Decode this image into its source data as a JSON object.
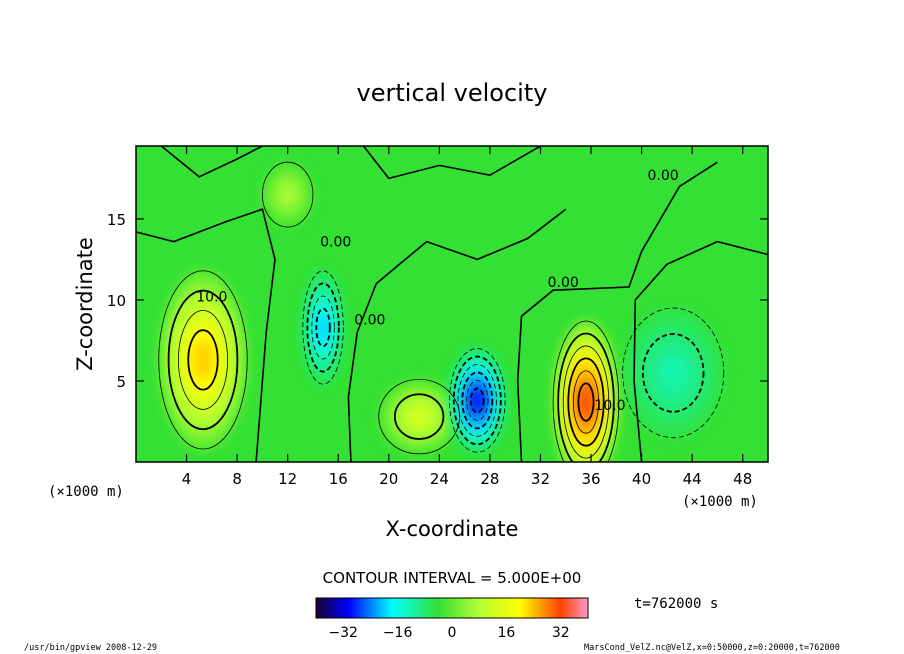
{
  "chart_data": {
    "type": "heatmap",
    "title": "vertical velocity",
    "xlabel": "X-coordinate",
    "ylabel": "Z-coordinate",
    "x_unit_left": "(×1000 m)",
    "x_unit_right": "(×1000 m)",
    "xlim": [
      0,
      50
    ],
    "ylim": [
      0,
      19.5
    ],
    "x_ticks": [
      4,
      8,
      12,
      16,
      20,
      24,
      28,
      32,
      36,
      40,
      44,
      48
    ],
    "y_ticks": [
      5,
      10,
      15
    ],
    "contour_labels": [
      {
        "text": "10.0",
        "x": 6,
        "y": 9.9
      },
      {
        "text": "0.00",
        "x": 15.8,
        "y": 13.3
      },
      {
        "text": "0.00",
        "x": 18.5,
        "y": 8.5
      },
      {
        "text": "0.00",
        "x": 33.8,
        "y": 10.8
      },
      {
        "text": "0.00",
        "x": 41.7,
        "y": 17.4
      },
      {
        "text": "10.0",
        "x": 37.5,
        "y": 3.2
      }
    ],
    "cells": [
      {
        "x": 5.3,
        "y": 6.3,
        "value": 20,
        "rx": 3.5,
        "ry": 5.5
      },
      {
        "x": 14.8,
        "y": 8.3,
        "value": -20,
        "rx": 1.6,
        "ry": 3.5
      },
      {
        "x": 22.4,
        "y": 2.8,
        "value": 12,
        "rx": 3.2,
        "ry": 2.3
      },
      {
        "x": 27.0,
        "y": 3.8,
        "value": -32,
        "rx": 2.2,
        "ry": 3.2
      },
      {
        "x": 35.6,
        "y": 3.7,
        "value": 30,
        "rx": 2.6,
        "ry": 5.0
      },
      {
        "x": 42.5,
        "y": 5.5,
        "value": -10,
        "rx": 4.0,
        "ry": 4.0
      },
      {
        "x": 12.0,
        "y": 16.5,
        "value": 8,
        "rx": 2.0,
        "ry": 2.0
      }
    ],
    "contour_interval": "CONTOUR INTERVAL = 5.000E+00",
    "colorbar_ticks": [
      -32,
      -16,
      0,
      16,
      32
    ],
    "time_label": "t=762000 s",
    "footer_left": "/usr/bin/gpview 2008-12-29",
    "footer_right": "MarsCond_VelZ.nc@VelZ,x=0:50000,z=0:20000,t=762000"
  },
  "colors": {
    "background_field": "#33e033",
    "positive": "#ff4000",
    "negative": "#0000ff"
  }
}
